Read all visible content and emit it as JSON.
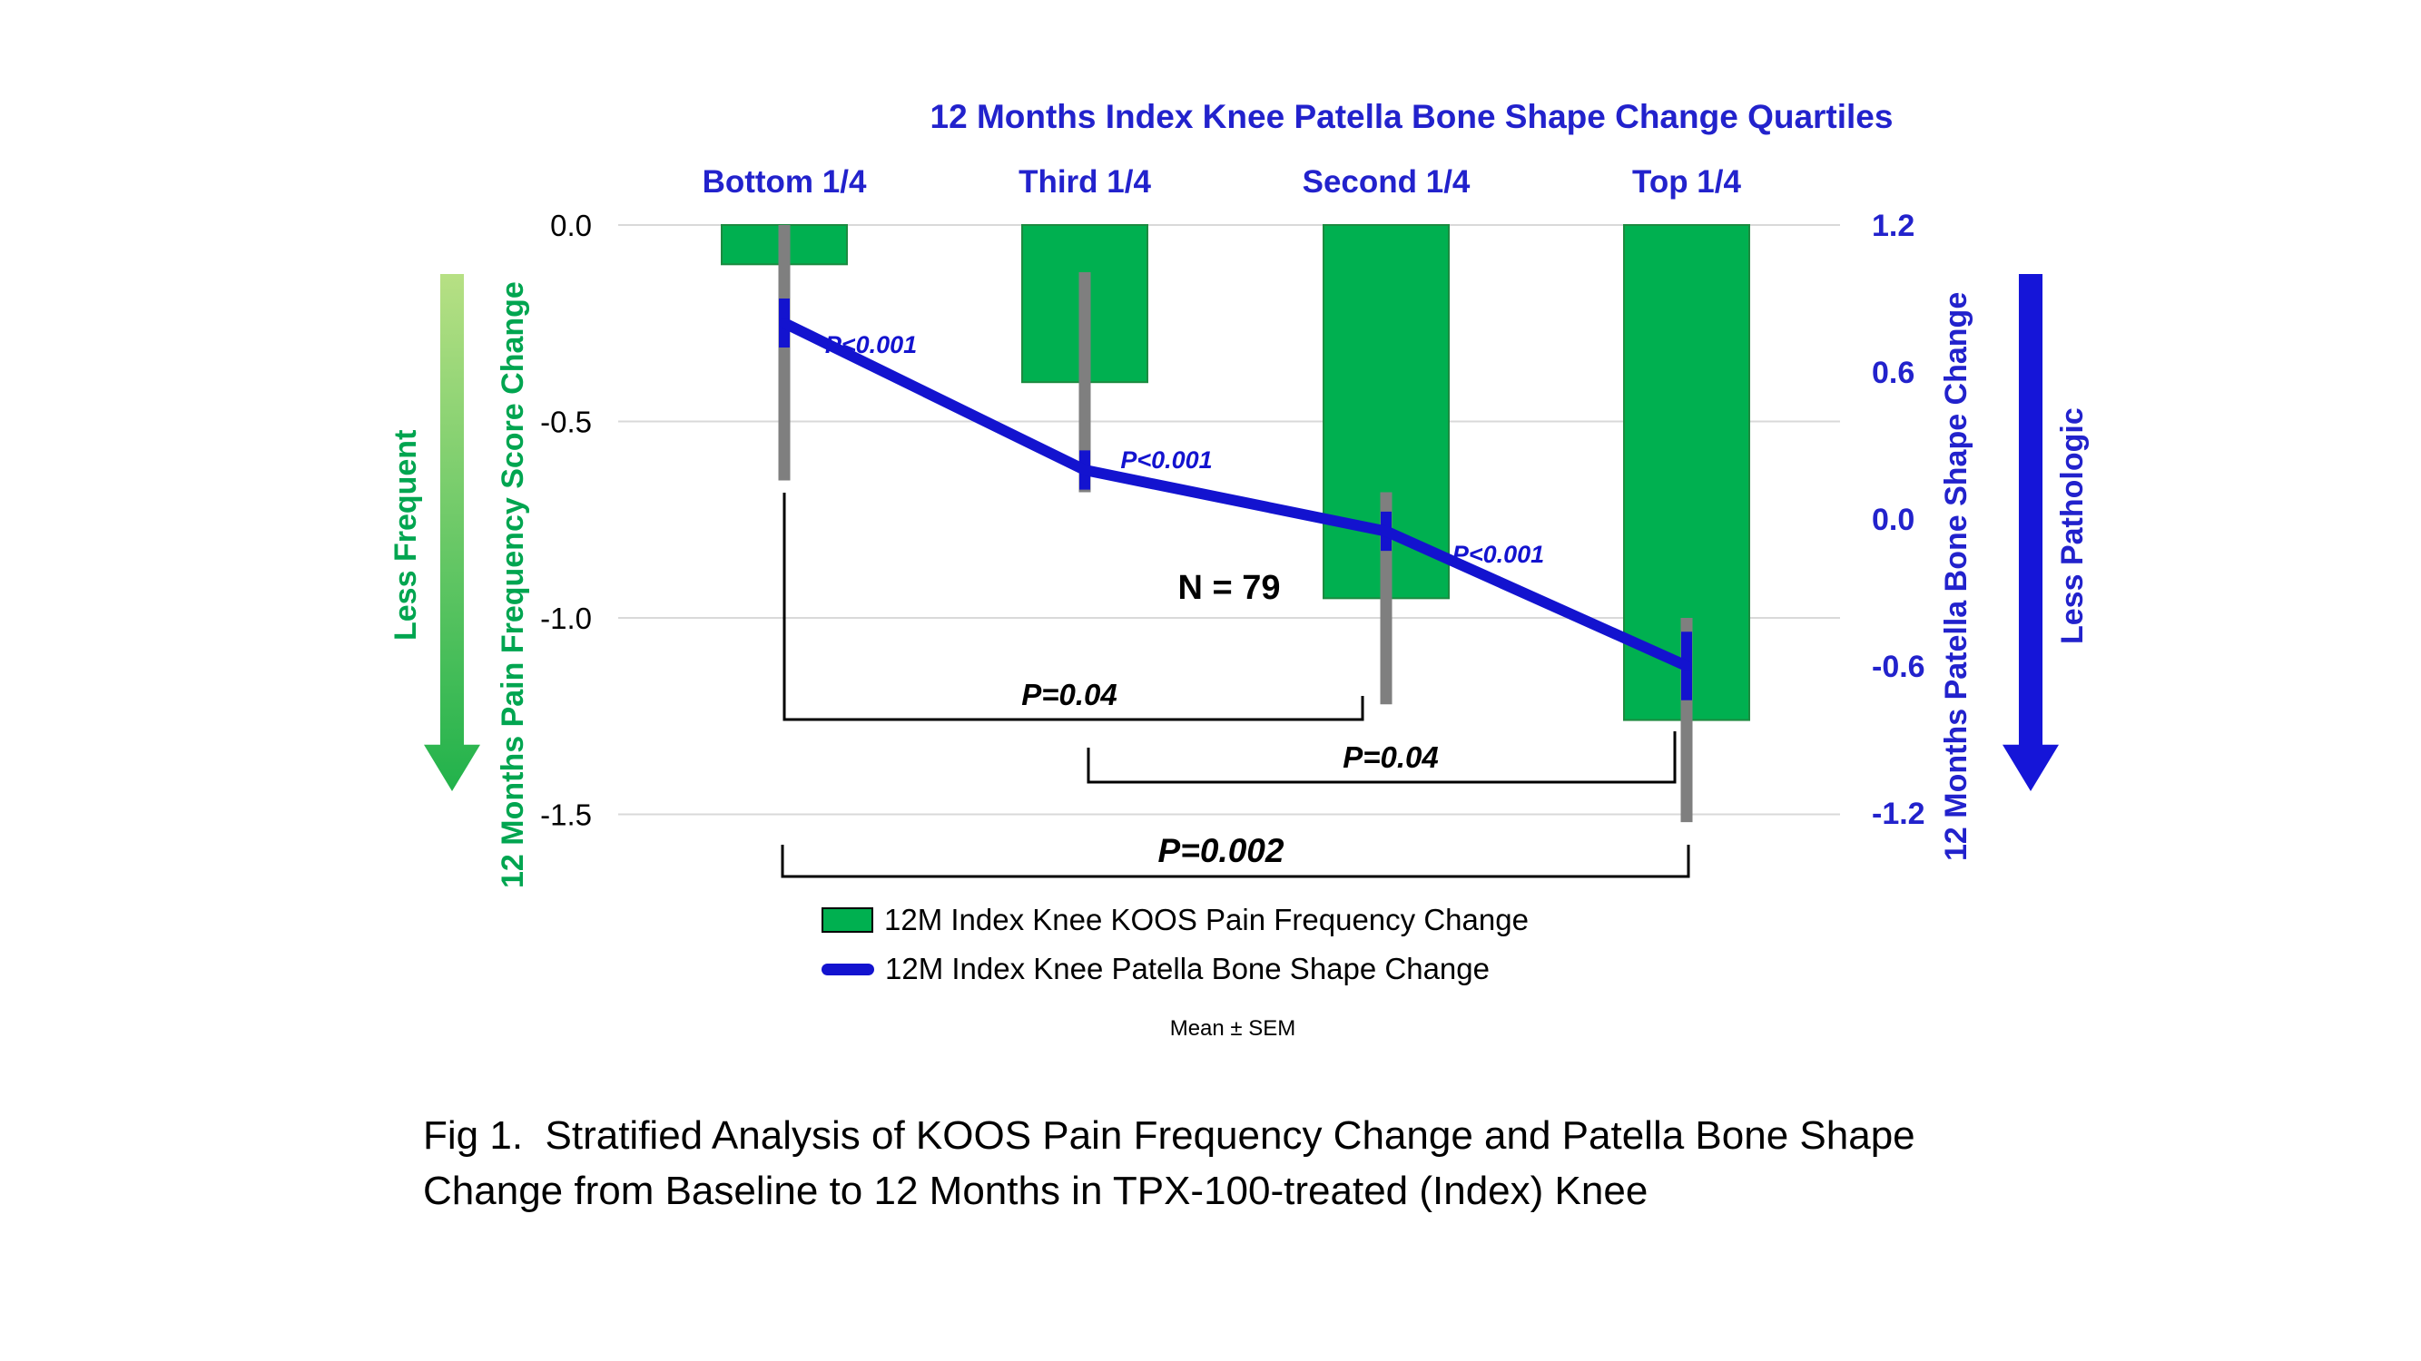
{
  "figure": {
    "caption": "Fig 1.  Stratified Analysis of KOOS Pain Frequency Change and Patella Bone Shape Change from Baseline to 12 Months in TPX-100-treated (Index) Knee"
  },
  "chart_data": {
    "type": "bar",
    "subtype": "bar-line-combo",
    "title": "12 Months Index Knee Patella Bone Shape Change Quartiles",
    "categories": [
      "Bottom 1/4",
      "Third 1/4",
      "Second 1/4",
      "Top 1/4"
    ],
    "series": [
      {
        "name": "12M Index Knee KOOS Pain Frequency Change",
        "type": "bar",
        "axis": "left",
        "values": [
          -0.1,
          -0.4,
          -0.95,
          -1.26
        ],
        "sem": [
          0.55,
          0.28,
          0.27,
          0.26
        ],
        "color": "#00B050"
      },
      {
        "name": "12M Index Knee Patella Bone Shape Change",
        "type": "line",
        "axis": "right",
        "values": [
          0.8,
          0.2,
          -0.05,
          -0.6
        ],
        "sem": [
          0.1,
          0.08,
          0.08,
          0.14
        ],
        "color": "#1313CF"
      }
    ],
    "left_axis": {
      "label": "12 Months Pain Frequency Score Change",
      "ticks": [
        "0.0",
        "-0.5",
        "-1.0",
        "-1.5"
      ],
      "range": [
        -1.5,
        0.0
      ],
      "direction_label": "Less Frequent",
      "color": "#00A550"
    },
    "right_axis": {
      "label": "12 Months Patella Bone Shape Change",
      "ticks": [
        "1.2",
        "0.6",
        "0.0",
        "-0.6",
        "-1.2"
      ],
      "range": [
        -1.2,
        1.2
      ],
      "direction_label": "Less Pathologic",
      "color": "#2222CC"
    },
    "grid": true,
    "legend_position": "bottom",
    "segment_pvalues": [
      "P<0.001",
      "P<0.001",
      "P<0.001"
    ],
    "sample_size_label": "N = 79",
    "comparisons": [
      {
        "from": 0,
        "to": 2,
        "between": [
          "Bottom 1/4",
          "Second 1/4"
        ],
        "label": "P=0.04"
      },
      {
        "from": 1,
        "to": 3,
        "between": [
          "Third 1/4",
          "Top 1/4"
        ],
        "label": "P=0.04"
      },
      {
        "from": 0,
        "to": 3,
        "between": [
          "Bottom 1/4",
          "Top 1/4"
        ],
        "label": "P=0.002"
      }
    ],
    "legend": [
      "12M Index Knee KOOS Pain Frequency Change",
      "12M Index Knee Patella Bone Shape Change"
    ],
    "note": "Mean ± SEM"
  }
}
